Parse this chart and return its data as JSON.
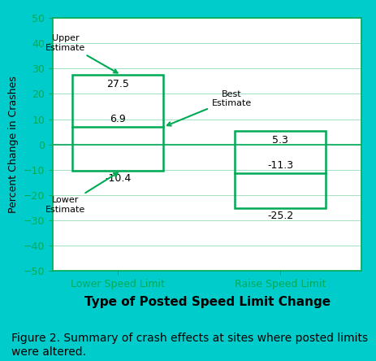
{
  "categories": [
    "Lower Speed Limit",
    "Raise Speed Limit"
  ],
  "upper": [
    27.5,
    5.3
  ],
  "best": [
    6.9,
    -11.3
  ],
  "lower": [
    -10.4,
    -25.2
  ],
  "box_color": "#00AA55",
  "zero_line_color": "#00AA55",
  "grid_color": "#00AA55",
  "plot_bg": "#F0F0F0",
  "outer_bg": "#00CCCC",
  "chart_frame_bg": "#FFFFFF",
  "ylim": [
    -50,
    50
  ],
  "yticks": [
    -50,
    -40,
    -30,
    -20,
    -10,
    0,
    10,
    20,
    30,
    40,
    50
  ],
  "ylabel": "Percent Change in Crashes",
  "xlabel": "Type of Posted Speed Limit Change",
  "caption": "Figure 2. Summary of crash effects at sites where posted limits\nwere altered.",
  "annotation_color": "#00AA55",
  "text_color": "#000000",
  "ann_text_color": "#000000",
  "label_fontsize": 9,
  "tick_fontsize": 9,
  "caption_fontsize": 10,
  "xlabel_fontsize": 11,
  "ylabel_fontsize": 9,
  "ann_fontsize": 8,
  "value_fontsize": 9
}
